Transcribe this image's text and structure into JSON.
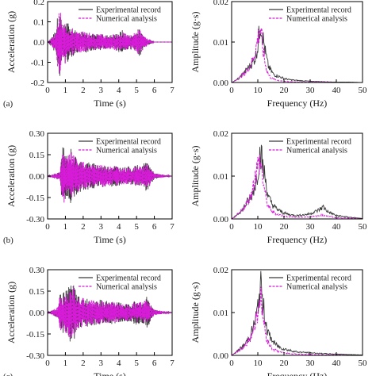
{
  "colors": {
    "experimental": "#3a3a3a",
    "numerical": "#d81bd8",
    "axis": "#000000"
  },
  "chart_data": [
    {
      "type": "line",
      "panel_label": "(a)",
      "xlabel": "Time (s)",
      "ylabel": "Acceleration (g)",
      "xlim": [
        0,
        7
      ],
      "ylim": [
        -0.2,
        0.2
      ],
      "xticks": [
        "0",
        "1",
        "2",
        "3",
        "4",
        "5",
        "6",
        "7"
      ],
      "yticks": [
        "-0.2",
        "-0.1",
        "0.0",
        "0.1",
        "0.2"
      ],
      "series": [
        {
          "name": "Experimental record",
          "style": "solid",
          "x": [
            0,
            0.5,
            0.55,
            0.6,
            0.65,
            0.7,
            0.75,
            0.8,
            0.9,
            1.0,
            1.2,
            1.4,
            1.6,
            1.8,
            2.0,
            2.3,
            2.6,
            3.0,
            3.4,
            3.8,
            4.0,
            4.2,
            4.4,
            4.6,
            4.8,
            5.0,
            5.2,
            5.4,
            5.8,
            6.0,
            7.0
          ],
          "env": [
            0,
            0.06,
            0.17,
            0.12,
            0.16,
            0.19,
            0.14,
            0.1,
            0.08,
            0.12,
            0.09,
            0.07,
            0.06,
            0.05,
            0.06,
            0.05,
            0.04,
            0.04,
            0.035,
            0.04,
            0.05,
            0.06,
            0.04,
            0.035,
            0.04,
            0.06,
            0.07,
            0.03,
            0.01,
            0,
            0
          ]
        },
        {
          "name": "Numerical analysis",
          "style": "dashed",
          "x": [
            0,
            0.5,
            0.55,
            0.6,
            0.65,
            0.7,
            0.75,
            0.8,
            0.9,
            1.0,
            1.2,
            1.4,
            1.6,
            1.8,
            2.0,
            2.3,
            2.6,
            3.0,
            3.4,
            3.8,
            4.0,
            4.2,
            4.4,
            4.6,
            4.8,
            5.0,
            5.2,
            5.4,
            5.8,
            6.0,
            7.0
          ],
          "env": [
            0,
            0.05,
            0.15,
            0.11,
            0.16,
            0.17,
            0.13,
            0.1,
            0.08,
            0.11,
            0.08,
            0.07,
            0.055,
            0.05,
            0.055,
            0.05,
            0.04,
            0.04,
            0.035,
            0.04,
            0.045,
            0.05,
            0.04,
            0.035,
            0.04,
            0.055,
            0.065,
            0.03,
            0.01,
            0,
            0
          ]
        }
      ],
      "legend": "top-right"
    },
    {
      "type": "line",
      "panel_label": "",
      "xlabel": "Frequency (Hz)",
      "ylabel": "Amplitude (g·s)",
      "xlim": [
        0,
        50
      ],
      "ylim": [
        0,
        0.02
      ],
      "xticks": [
        "0",
        "10",
        "20",
        "30",
        "40",
        "50"
      ],
      "yticks": [
        "0.00",
        "0.01",
        "0.02"
      ],
      "series": [
        {
          "name": "Experimental record",
          "style": "solid",
          "x": [
            0,
            1,
            2,
            3,
            4,
            5,
            6,
            7,
            8,
            9,
            10,
            11,
            12,
            13,
            14,
            15,
            16,
            18,
            20,
            22,
            25,
            30,
            35,
            40,
            45,
            50
          ],
          "y": [
            0,
            0.0003,
            0.0008,
            0.0012,
            0.002,
            0.0025,
            0.0035,
            0.004,
            0.005,
            0.006,
            0.009,
            0.015,
            0.011,
            0.007,
            0.004,
            0.003,
            0.002,
            0.0015,
            0.001,
            0.0007,
            0.0005,
            0.0003,
            0.0002,
            0.0001,
            0.0001,
            0
          ]
        },
        {
          "name": "Numerical analysis",
          "style": "dashed",
          "x": [
            0,
            1,
            2,
            3,
            4,
            5,
            6,
            7,
            8,
            9,
            10,
            11,
            12,
            13,
            14,
            15,
            16,
            18,
            20,
            22,
            25,
            30,
            35,
            40,
            45,
            50
          ],
          "y": [
            0,
            0.0003,
            0.0007,
            0.0011,
            0.0018,
            0.0022,
            0.003,
            0.004,
            0.0055,
            0.0075,
            0.011,
            0.0135,
            0.008,
            0.004,
            0.002,
            0.0012,
            0.0008,
            0.0005,
            0.0003,
            0.0002,
            0.0001,
            0.0001,
            0.0001,
            0,
            0,
            0
          ]
        }
      ],
      "legend": "top-right"
    },
    {
      "type": "line",
      "panel_label": "(b)",
      "xlabel": "Time (s)",
      "ylabel": "Acceleration (g)",
      "xlim": [
        0,
        7
      ],
      "ylim": [
        -0.3,
        0.3
      ],
      "xticks": [
        "0",
        "1",
        "2",
        "3",
        "4",
        "5",
        "6",
        "7"
      ],
      "yticks": [
        "-0.30",
        "-0.15",
        "0.00",
        "0.15",
        "0.30"
      ],
      "series": [
        {
          "name": "Experimental record",
          "style": "solid",
          "x": [
            0,
            0.7,
            0.8,
            0.9,
            1.0,
            1.1,
            1.3,
            1.5,
            1.7,
            2.0,
            2.3,
            2.6,
            3.0,
            3.4,
            3.8,
            4.0,
            4.2,
            4.5,
            4.8,
            5.0,
            5.3,
            5.6,
            5.8,
            6.0,
            7.0
          ],
          "env": [
            0,
            0.03,
            0.18,
            0.22,
            0.16,
            0.14,
            0.2,
            0.15,
            0.12,
            0.1,
            0.1,
            0.09,
            0.08,
            0.07,
            0.08,
            0.07,
            0.06,
            0.07,
            0.06,
            0.08,
            0.07,
            0.12,
            0.06,
            0.02,
            0
          ]
        },
        {
          "name": "Numerical analysis",
          "style": "dashed",
          "x": [
            0,
            0.7,
            0.8,
            0.9,
            1.0,
            1.1,
            1.3,
            1.5,
            1.7,
            2.0,
            2.3,
            2.6,
            3.0,
            3.4,
            3.8,
            4.0,
            4.2,
            4.5,
            4.8,
            5.0,
            5.3,
            5.6,
            5.8,
            6.0,
            7.0
          ],
          "env": [
            0,
            0.03,
            0.16,
            0.2,
            0.15,
            0.13,
            0.18,
            0.14,
            0.11,
            0.1,
            0.09,
            0.08,
            0.08,
            0.07,
            0.07,
            0.06,
            0.06,
            0.06,
            0.06,
            0.07,
            0.07,
            0.1,
            0.05,
            0.02,
            0
          ]
        }
      ],
      "legend": "top-right"
    },
    {
      "type": "line",
      "panel_label": "",
      "xlabel": "Frequency (Hz)",
      "ylabel": "Amplitude (g·s)",
      "xlim": [
        0,
        50
      ],
      "ylim": [
        0,
        0.02
      ],
      "xticks": [
        "0",
        "10",
        "20",
        "30",
        "40",
        "50"
      ],
      "yticks": [
        "0.00",
        "0.01",
        "0.02"
      ],
      "series": [
        {
          "name": "Experimental record",
          "style": "solid",
          "x": [
            0,
            1,
            2,
            3,
            4,
            5,
            6,
            7,
            8,
            9,
            10,
            11,
            12,
            13,
            14,
            15,
            16,
            18,
            20,
            22,
            25,
            28,
            30,
            33,
            35,
            37,
            40,
            45,
            50
          ],
          "y": [
            0,
            0.0004,
            0.001,
            0.0015,
            0.002,
            0.003,
            0.004,
            0.0045,
            0.006,
            0.008,
            0.011,
            0.016,
            0.012,
            0.009,
            0.005,
            0.004,
            0.003,
            0.002,
            0.0014,
            0.001,
            0.0008,
            0.001,
            0.0012,
            0.002,
            0.0028,
            0.0016,
            0.0008,
            0.0004,
            0.0001
          ]
        },
        {
          "name": "Numerical analysis",
          "style": "dashed",
          "x": [
            0,
            1,
            2,
            3,
            4,
            5,
            6,
            7,
            8,
            9,
            10,
            11,
            12,
            13,
            14,
            15,
            16,
            18,
            20,
            22,
            25,
            28,
            30,
            33,
            35,
            37,
            40,
            45,
            50
          ],
          "y": [
            0,
            0.0004,
            0.0009,
            0.0014,
            0.002,
            0.0028,
            0.004,
            0.005,
            0.007,
            0.01,
            0.0125,
            0.0135,
            0.009,
            0.005,
            0.003,
            0.002,
            0.0015,
            0.001,
            0.0007,
            0.0005,
            0.0004,
            0.0004,
            0.0005,
            0.0007,
            0.0009,
            0.0006,
            0.0003,
            0.0002,
            0
          ]
        }
      ],
      "legend": "top-right"
    },
    {
      "type": "line",
      "panel_label": "(c)",
      "xlabel": "Time (s)",
      "ylabel": "Acceleration (g)",
      "xlim": [
        0,
        7
      ],
      "ylim": [
        -0.3,
        0.3
      ],
      "xticks": [
        "0",
        "1",
        "2",
        "3",
        "4",
        "5",
        "6",
        "7"
      ],
      "yticks": [
        "-0.30",
        "-0.15",
        "0.00",
        "0.15",
        "0.30"
      ],
      "series": [
        {
          "name": "Experimental record",
          "style": "solid",
          "x": [
            0,
            0.6,
            0.7,
            0.8,
            0.9,
            1.0,
            1.2,
            1.4,
            1.6,
            1.8,
            2.0,
            2.3,
            2.6,
            3.0,
            3.4,
            3.8,
            4.0,
            4.3,
            4.6,
            5.0,
            5.3,
            5.6,
            5.8,
            6.0,
            7.0
          ],
          "env": [
            0,
            0.04,
            0.16,
            0.12,
            0.17,
            0.15,
            0.2,
            0.24,
            0.14,
            0.12,
            0.1,
            0.1,
            0.09,
            0.09,
            0.08,
            0.08,
            0.07,
            0.07,
            0.06,
            0.09,
            0.07,
            0.12,
            0.06,
            0.02,
            0
          ]
        },
        {
          "name": "Numerical analysis",
          "style": "dashed",
          "x": [
            0,
            0.6,
            0.7,
            0.8,
            0.9,
            1.0,
            1.2,
            1.4,
            1.6,
            1.8,
            2.0,
            2.3,
            2.6,
            3.0,
            3.4,
            3.8,
            4.0,
            4.3,
            4.6,
            5.0,
            5.3,
            5.6,
            5.8,
            6.0,
            7.0
          ],
          "env": [
            0,
            0.04,
            0.14,
            0.11,
            0.15,
            0.14,
            0.18,
            0.2,
            0.13,
            0.11,
            0.1,
            0.09,
            0.09,
            0.08,
            0.08,
            0.07,
            0.07,
            0.06,
            0.06,
            0.08,
            0.07,
            0.1,
            0.05,
            0.02,
            0
          ]
        }
      ],
      "legend": "top-right"
    },
    {
      "type": "line",
      "panel_label": "",
      "xlabel": "Frequency (Hz)",
      "ylabel": "Amplitude (g·s)",
      "xlim": [
        0,
        50
      ],
      "ylim": [
        0,
        0.02
      ],
      "xticks": [
        "0",
        "10",
        "20",
        "30",
        "40",
        "50"
      ],
      "yticks": [
        "0.00",
        "0.01",
        "0.02"
      ],
      "series": [
        {
          "name": "Experimental record",
          "style": "solid",
          "x": [
            0,
            1,
            2,
            3,
            4,
            5,
            6,
            7,
            8,
            9,
            10,
            11,
            12,
            13,
            14,
            15,
            16,
            18,
            20,
            22,
            25,
            30,
            35,
            40,
            45,
            50
          ],
          "y": [
            0,
            0.0004,
            0.0009,
            0.0014,
            0.002,
            0.0025,
            0.0035,
            0.0045,
            0.006,
            0.008,
            0.011,
            0.0165,
            0.012,
            0.008,
            0.005,
            0.004,
            0.003,
            0.002,
            0.0015,
            0.0012,
            0.0008,
            0.0006,
            0.0004,
            0.0003,
            0.0002,
            0.0001
          ]
        },
        {
          "name": "Numerical analysis",
          "style": "dashed",
          "x": [
            0,
            1,
            2,
            3,
            4,
            5,
            6,
            7,
            8,
            9,
            10,
            11,
            12,
            13,
            14,
            15,
            16,
            18,
            20,
            22,
            25,
            30,
            35,
            40,
            45,
            50
          ],
          "y": [
            0,
            0.0004,
            0.0008,
            0.0013,
            0.0018,
            0.0023,
            0.003,
            0.004,
            0.0055,
            0.0075,
            0.0105,
            0.0145,
            0.009,
            0.005,
            0.003,
            0.002,
            0.0014,
            0.0009,
            0.0006,
            0.0004,
            0.0003,
            0.0002,
            0.0001,
            0.0001,
            0,
            0
          ]
        }
      ],
      "legend": "top-right"
    }
  ]
}
